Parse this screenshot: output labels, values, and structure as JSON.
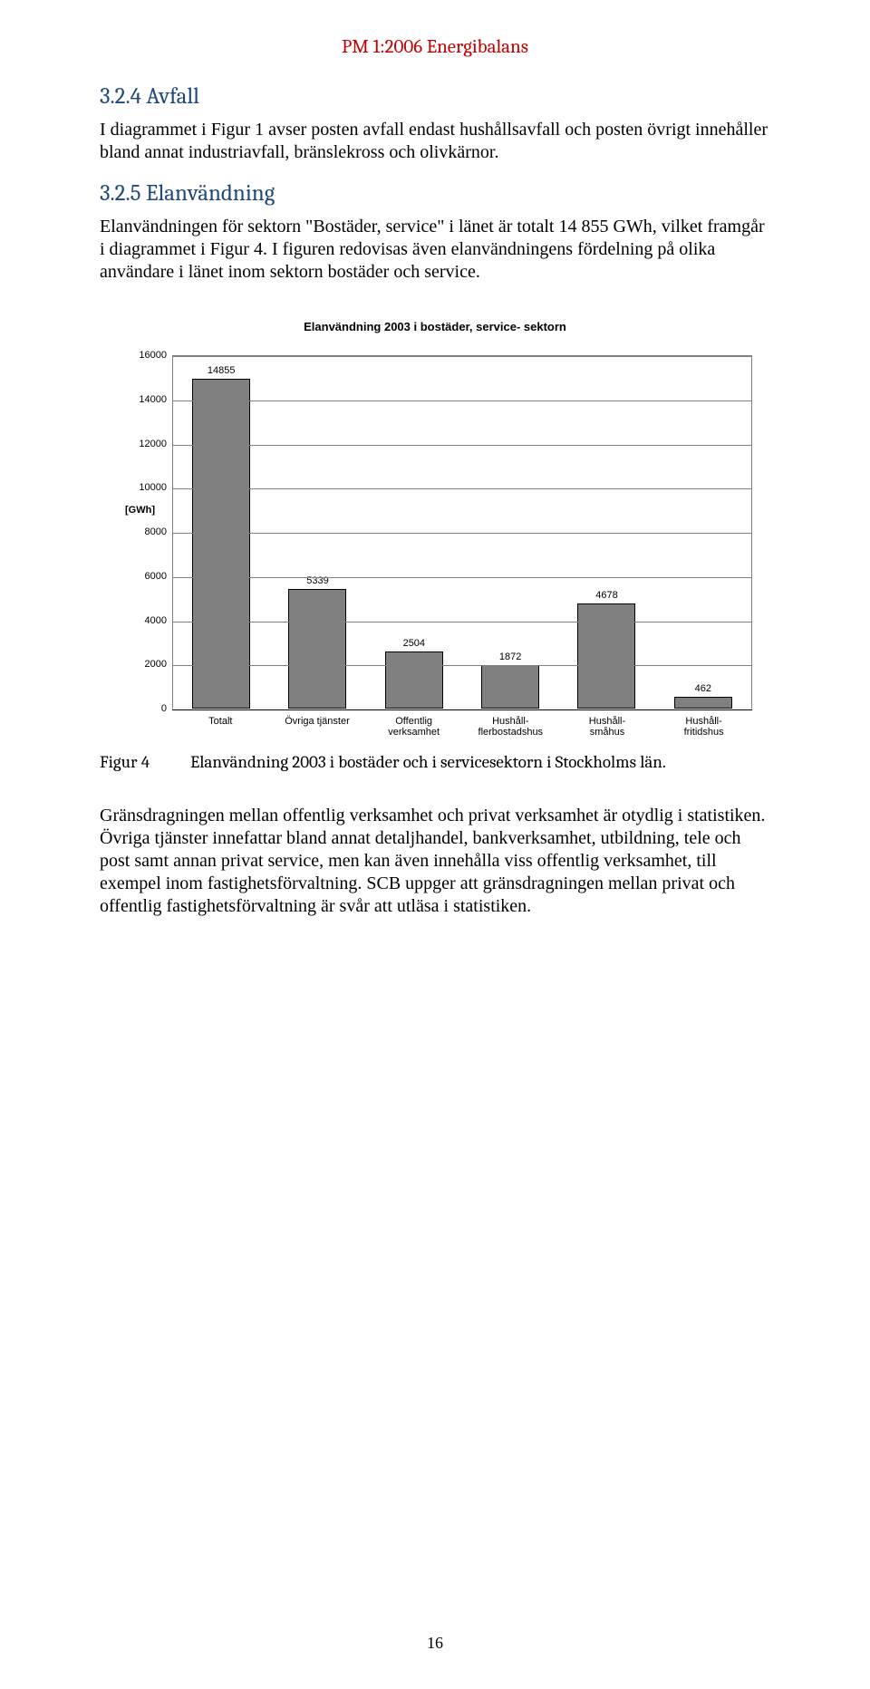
{
  "header": {
    "title": "PM 1:2006 Energibalans"
  },
  "section_324": {
    "heading": "3.2.4  Avfall",
    "para": "I diagrammet i Figur 1 avser posten avfall endast hushållsavfall och posten övrigt innehåller bland annat industriavfall, bränslekross och olivkärnor."
  },
  "section_325": {
    "heading": "3.2.5  Elanvändning",
    "para": "Elanvändningen för sektorn \"Bostäder, service\" i länet är totalt 14 855 GWh, vilket framgår i diagrammet i Figur 4. I figuren redovisas även elanvändningens fördelning på olika användare i länet inom sektorn bostäder och service."
  },
  "chart": {
    "type": "bar",
    "title": "Elanvändning 2003 i bostäder, service- sektorn",
    "y_axis_label": "[GWh]",
    "ymin": 0,
    "ymax": 16000,
    "ytick_step": 2000,
    "yticks": [
      "0",
      "2000",
      "4000",
      "6000",
      "8000",
      "10000",
      "12000",
      "14000",
      "16000"
    ],
    "categories": [
      "Totalt",
      "Övriga tjänster",
      "Offentlig verksamhet",
      "Hushåll- flerbostadshus",
      "Hushåll- småhus",
      "Hushåll- fritidshus"
    ],
    "values": [
      14855,
      5339,
      2504,
      1872,
      4678,
      462
    ],
    "bar_color": "#808080",
    "bar_border": "#000000",
    "grid_color": "#808080",
    "bg_color": "#ffffff",
    "font_family": "Arial"
  },
  "caption": {
    "fig_num": "Figur 4",
    "text": "Elanvändning 2003 i bostäder och i servicesektorn i Stockholms län."
  },
  "post_para": "Gränsdragningen mellan offentlig verksamhet och privat verksamhet är otydlig i statistiken. Övriga tjänster innefattar bland annat detaljhandel, bankverksamhet, utbildning, tele och post samt annan privat service, men kan även innehålla viss offentlig verksamhet, till exempel inom fastighetsförvaltning. SCB uppger att gränsdragningen mellan privat och offentlig fastighetsförvaltning är svår att utläsa i statistiken.",
  "page_number": "16"
}
